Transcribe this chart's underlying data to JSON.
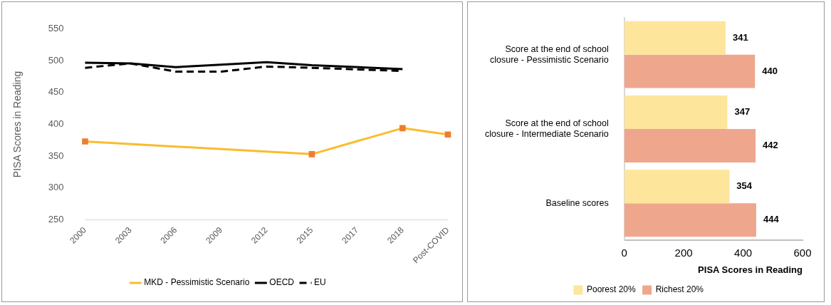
{
  "chart_data": [
    {
      "type": "line",
      "ylabel": "PISA Scores in Reading",
      "categories": [
        "2000",
        "2003",
        "2006",
        "2009",
        "2012",
        "2015",
        "2017",
        "2018",
        "Post-COVID"
      ],
      "series": [
        {
          "name": "MKD - Pessimistic Scenario",
          "color": "#fbbc2c",
          "marker": "square",
          "line_style": "solid",
          "values": [
            373,
            null,
            null,
            null,
            null,
            353,
            null,
            394,
            384
          ]
        },
        {
          "name": "OECD",
          "color": "#000000",
          "marker": "none",
          "line_style": "solid",
          "values": [
            497,
            496,
            490,
            494,
            498,
            493,
            null,
            487,
            null
          ]
        },
        {
          "name": "EU",
          "color": "#000000",
          "marker": "none",
          "line_style": "dashed",
          "values": [
            489,
            496,
            483,
            483,
            491,
            489,
            null,
            484,
            null
          ]
        }
      ],
      "ylim": [
        250,
        550
      ],
      "yticks": [
        250,
        300,
        350,
        400,
        450,
        500,
        550
      ],
      "grid": false,
      "legend": "bottom"
    },
    {
      "type": "bar",
      "orientation": "horizontal",
      "xlabel": "PISA Scores in Reading",
      "categories": [
        "Score at the end of school closure - Pessimistic Scenario",
        "Score at the end of school closure - Intermediate Scenario",
        "Baseline scores"
      ],
      "series": [
        {
          "name": "Poorest 20%",
          "color": "#fde59c",
          "values": [
            341,
            347,
            354
          ]
        },
        {
          "name": "Richest 20%",
          "color": "#eea78d",
          "values": [
            440,
            442,
            444
          ]
        }
      ],
      "xlim": [
        0,
        600
      ],
      "xticks": [
        0,
        200,
        400,
        600
      ],
      "grid": false,
      "legend": "bottom",
      "data_labels": true
    }
  ]
}
